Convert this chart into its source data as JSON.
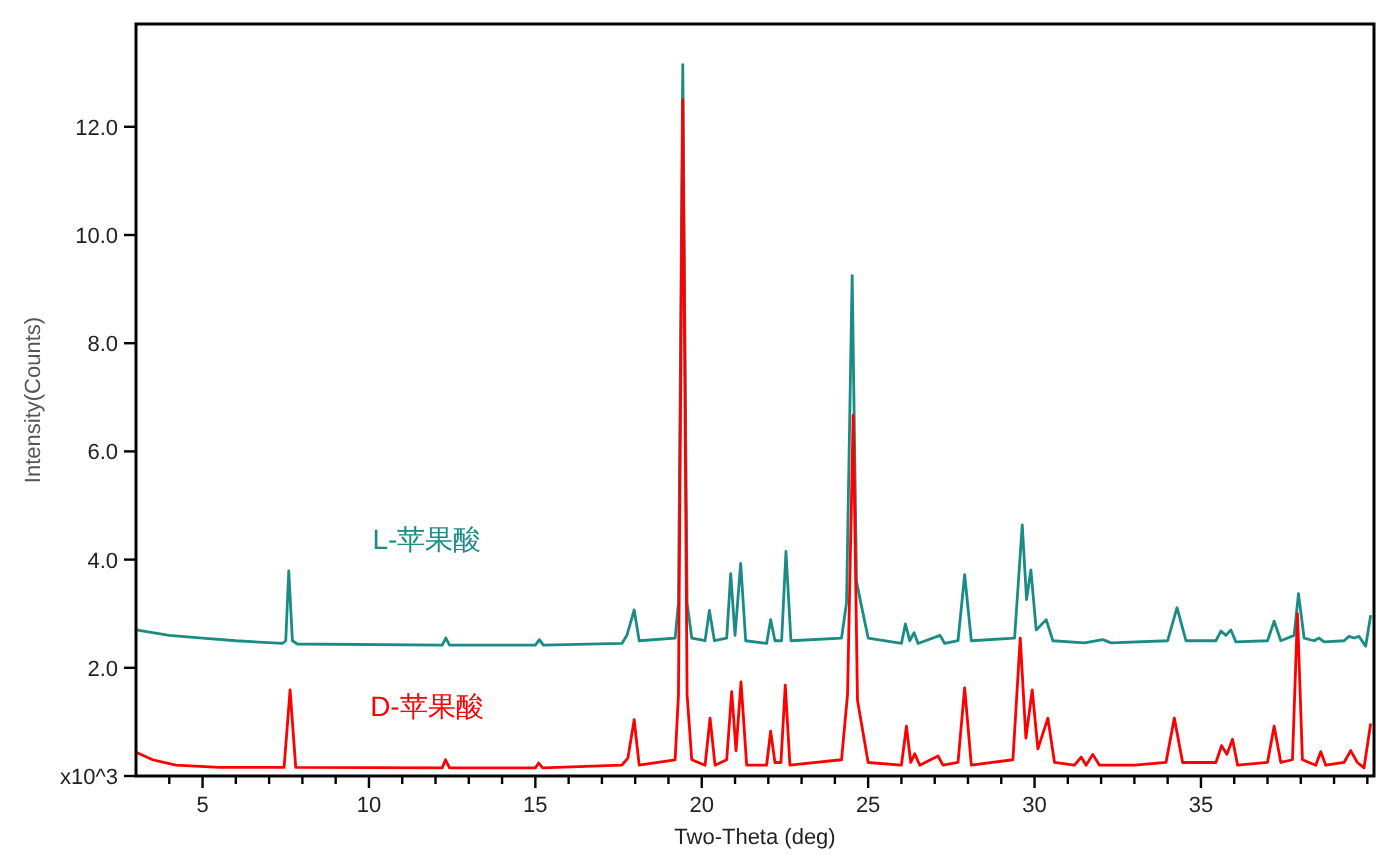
{
  "chart_data": {
    "type": "line",
    "xlabel": "Two-Theta (deg)",
    "ylabel": "Intensity(Counts)",
    "xlim": [
      3,
      40.2
    ],
    "ylim": [
      0,
      13.9
    ],
    "xticks": [
      {
        "value": 4,
        "label": null
      },
      5,
      {
        "value": 6,
        "label": null
      },
      {
        "value": 7,
        "label": null
      },
      {
        "value": 8,
        "label": null
      },
      {
        "value": 9,
        "label": null
      },
      10,
      {
        "value": 11,
        "label": null
      },
      {
        "value": 12,
        "label": null
      },
      {
        "value": 13,
        "label": null
      },
      {
        "value": 14,
        "label": null
      },
      15,
      {
        "value": 16,
        "label": null
      },
      {
        "value": 17,
        "label": null
      },
      {
        "value": 18,
        "label": null
      },
      {
        "value": 19,
        "label": null
      },
      20,
      {
        "value": 21,
        "label": null
      },
      {
        "value": 22,
        "label": null
      },
      {
        "value": 23,
        "label": null
      },
      {
        "value": 24,
        "label": null
      },
      25,
      {
        "value": 26,
        "label": null
      },
      {
        "value": 27,
        "label": null
      },
      {
        "value": 28,
        "label": null
      },
      {
        "value": 29,
        "label": null
      },
      30,
      {
        "value": 31,
        "label": null
      },
      {
        "value": 32,
        "label": null
      },
      {
        "value": 33,
        "label": null
      },
      {
        "value": 34,
        "label": null
      },
      35,
      {
        "value": 36,
        "label": null
      },
      {
        "value": 37,
        "label": null
      },
      {
        "value": 38,
        "label": null
      },
      {
        "value": 39,
        "label": null
      },
      {
        "value": 40,
        "label": null
      }
    ],
    "yticks": [
      {
        "value": 0,
        "label": "x10^3"
      },
      {
        "value": 2,
        "label": "2.0"
      },
      {
        "value": 4,
        "label": "4.0"
      },
      {
        "value": 6,
        "label": "6.0"
      },
      {
        "value": 8,
        "label": "8.0"
      },
      {
        "value": 10,
        "label": "10.0"
      },
      {
        "value": 12,
        "label": "12.0"
      }
    ],
    "grid": false,
    "legend": false,
    "marker": "none",
    "line_style": "solid",
    "series": [
      {
        "name": "L-苹果酸",
        "color": "#1a8c86",
        "x": [
          3.0,
          4,
          5,
          6,
          7.4,
          7.5,
          7.59,
          7.7,
          7.85,
          12.2,
          12.31,
          12.42,
          15.0,
          15.12,
          15.24,
          17.6,
          17.75,
          17.97,
          18.12,
          19.2,
          19.3,
          19.43,
          19.56,
          19.7,
          20.1,
          20.23,
          20.38,
          20.75,
          20.87,
          21.0,
          21.17,
          21.32,
          21.95,
          22.07,
          22.2,
          22.4,
          22.53,
          22.68,
          24.2,
          24.35,
          24.52,
          24.65,
          24.76,
          25.0,
          26.0,
          26.12,
          26.25,
          26.38,
          26.5,
          27.16,
          27.3,
          27.7,
          27.9,
          28.1,
          29.4,
          29.63,
          29.76,
          29.89,
          30.05,
          30.35,
          30.55,
          31.5,
          32.05,
          32.3,
          34.0,
          34.28,
          34.55,
          35.45,
          35.6,
          35.75,
          35.9,
          36.05,
          37.0,
          37.2,
          37.4,
          37.8,
          37.93,
          38.1,
          38.4,
          38.55,
          38.7,
          39.3,
          39.45,
          39.6,
          39.75,
          39.95,
          40.1
        ],
        "values": [
          2.7,
          2.6,
          2.55,
          2.5,
          2.45,
          2.5,
          3.79,
          2.5,
          2.44,
          2.42,
          2.55,
          2.42,
          2.42,
          2.52,
          2.42,
          2.45,
          2.6,
          3.07,
          2.5,
          2.55,
          3.2,
          13.15,
          3.2,
          2.55,
          2.5,
          3.06,
          2.5,
          2.55,
          3.74,
          2.6,
          3.93,
          2.5,
          2.45,
          2.89,
          2.5,
          2.5,
          4.15,
          2.5,
          2.55,
          3.2,
          9.25,
          3.6,
          3.26,
          2.55,
          2.45,
          2.81,
          2.5,
          2.65,
          2.45,
          2.6,
          2.45,
          2.5,
          3.72,
          2.5,
          2.55,
          4.64,
          3.26,
          3.81,
          2.7,
          2.89,
          2.5,
          2.46,
          2.52,
          2.46,
          2.5,
          3.11,
          2.5,
          2.5,
          2.68,
          2.6,
          2.7,
          2.48,
          2.5,
          2.86,
          2.5,
          2.6,
          3.37,
          2.55,
          2.5,
          2.55,
          2.48,
          2.5,
          2.58,
          2.55,
          2.58,
          2.4,
          2.97
        ]
      },
      {
        "name": "D-苹果酸",
        "color": "#ff0000",
        "x": [
          3.0,
          3.5,
          4.2,
          5.5,
          7.45,
          7.63,
          7.8,
          12.2,
          12.3,
          12.42,
          15.0,
          15.1,
          15.22,
          17.6,
          17.78,
          17.97,
          18.12,
          19.2,
          19.3,
          19.43,
          19.56,
          19.7,
          20.1,
          20.25,
          20.4,
          20.75,
          20.9,
          21.03,
          21.18,
          21.35,
          21.95,
          22.07,
          22.2,
          22.38,
          22.51,
          22.65,
          24.2,
          24.38,
          24.55,
          24.68,
          24.76,
          25.0,
          26.0,
          26.15,
          26.28,
          26.4,
          26.55,
          27.1,
          27.25,
          27.7,
          27.9,
          28.1,
          29.35,
          29.57,
          29.74,
          29.93,
          30.1,
          30.4,
          30.6,
          31.2,
          31.4,
          31.55,
          31.75,
          31.95,
          33.0,
          33.95,
          34.2,
          34.45,
          35.45,
          35.62,
          35.78,
          35.95,
          36.1,
          37.0,
          37.2,
          37.4,
          37.75,
          37.9,
          38.05,
          38.45,
          38.6,
          38.75,
          39.3,
          39.5,
          39.7,
          39.9,
          40.1
        ],
        "values": [
          0.44,
          0.3,
          0.2,
          0.16,
          0.16,
          1.59,
          0.16,
          0.15,
          0.3,
          0.15,
          0.15,
          0.24,
          0.15,
          0.2,
          0.33,
          1.04,
          0.2,
          0.3,
          1.5,
          12.5,
          1.5,
          0.3,
          0.2,
          1.07,
          0.2,
          0.3,
          1.56,
          0.47,
          1.74,
          0.2,
          0.2,
          0.83,
          0.25,
          0.25,
          1.68,
          0.2,
          0.3,
          1.5,
          6.67,
          1.4,
          1.11,
          0.25,
          0.2,
          0.92,
          0.25,
          0.41,
          0.2,
          0.37,
          0.2,
          0.25,
          1.63,
          0.2,
          0.3,
          2.55,
          0.7,
          1.59,
          0.5,
          1.07,
          0.25,
          0.2,
          0.35,
          0.2,
          0.4,
          0.2,
          0.2,
          0.25,
          1.07,
          0.25,
          0.25,
          0.56,
          0.4,
          0.68,
          0.2,
          0.25,
          0.92,
          0.25,
          0.3,
          3.0,
          0.3,
          0.2,
          0.45,
          0.2,
          0.25,
          0.47,
          0.25,
          0.15,
          0.97
        ]
      }
    ]
  }
}
